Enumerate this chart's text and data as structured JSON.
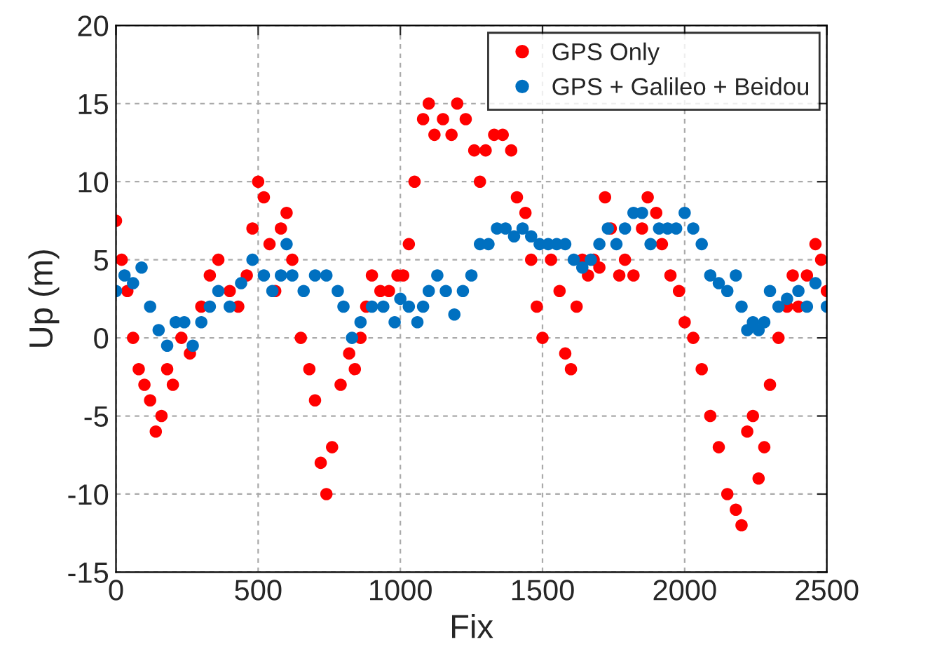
{
  "chart_data": {
    "type": "scatter",
    "xlabel": "Fix",
    "ylabel": "Up (m)",
    "xlim": [
      0,
      2500
    ],
    "xticks": [
      0,
      500,
      1000,
      1500,
      2000,
      2500
    ],
    "ylim": [
      -15,
      20
    ],
    "yticks": [
      -15,
      -10,
      -5,
      0,
      5,
      10,
      15,
      20
    ],
    "grid": true,
    "legend": "top right",
    "marker": "circle",
    "series": [
      {
        "name": "GPS Only",
        "color": "#ff0000",
        "x": [
          0,
          20,
          40,
          60,
          80,
          100,
          120,
          140,
          160,
          180,
          200,
          230,
          260,
          300,
          330,
          360,
          400,
          430,
          460,
          480,
          500,
          520,
          540,
          560,
          580,
          600,
          620,
          650,
          680,
          700,
          720,
          740,
          760,
          790,
          820,
          840,
          860,
          880,
          900,
          930,
          960,
          990,
          1010,
          1030,
          1050,
          1080,
          1100,
          1120,
          1150,
          1180,
          1200,
          1230,
          1260,
          1280,
          1300,
          1330,
          1360,
          1390,
          1410,
          1440,
          1460,
          1480,
          1500,
          1530,
          1560,
          1580,
          1600,
          1620,
          1640,
          1660,
          1680,
          1700,
          1720,
          1740,
          1770,
          1790,
          1820,
          1850,
          1870,
          1900,
          1920,
          1950,
          1980,
          2000,
          2030,
          2060,
          2090,
          2120,
          2150,
          2180,
          2200,
          2220,
          2240,
          2260,
          2280,
          2300,
          2330,
          2360,
          2380,
          2400,
          2430,
          2460,
          2480,
          2500
        ],
        "values": [
          7.5,
          5,
          3,
          0,
          -2,
          -3,
          -4,
          -6,
          -5,
          -2,
          -3,
          0,
          -1,
          2,
          4,
          5,
          3,
          2,
          4,
          7,
          10,
          9,
          6,
          3,
          7,
          8,
          5,
          0,
          -2,
          -4,
          -8,
          -10,
          -7,
          -3,
          -1,
          -2,
          0,
          2,
          4,
          3,
          3,
          4,
          4,
          6,
          10,
          14,
          15,
          13,
          14,
          13,
          15,
          14,
          12,
          10,
          12,
          13,
          13,
          12,
          9,
          8,
          5,
          2,
          0,
          5,
          3,
          -1,
          -2,
          2,
          5,
          4,
          5,
          4.5,
          9,
          7,
          4,
          5,
          4,
          7,
          9,
          8,
          6,
          4,
          3,
          1,
          0,
          -2,
          -5,
          -7,
          -10,
          -11,
          -12,
          -6,
          -5,
          -9,
          -7,
          -3,
          0,
          2,
          4,
          2,
          4,
          6,
          5,
          3
        ]
      },
      {
        "name": "GPS + Galileo + Beidou",
        "color": "#0070c0",
        "x": [
          0,
          30,
          60,
          90,
          120,
          150,
          180,
          210,
          240,
          270,
          300,
          330,
          360,
          400,
          440,
          480,
          520,
          550,
          580,
          600,
          620,
          660,
          700,
          740,
          780,
          800,
          830,
          860,
          900,
          940,
          980,
          1000,
          1030,
          1060,
          1080,
          1100,
          1130,
          1160,
          1190,
          1220,
          1250,
          1280,
          1310,
          1340,
          1370,
          1400,
          1430,
          1460,
          1490,
          1520,
          1550,
          1580,
          1610,
          1640,
          1670,
          1700,
          1730,
          1760,
          1790,
          1820,
          1850,
          1880,
          1910,
          1940,
          1970,
          2000,
          2030,
          2060,
          2090,
          2120,
          2150,
          2180,
          2200,
          2220,
          2240,
          2260,
          2280,
          2300,
          2330,
          2360,
          2400,
          2430,
          2460,
          2500
        ],
        "values": [
          3,
          4,
          3.5,
          4.5,
          2,
          0.5,
          -0.5,
          1,
          1,
          -0.5,
          1,
          2,
          3,
          2,
          3.5,
          5,
          4,
          3,
          4,
          6,
          4,
          3,
          4,
          4,
          3,
          2,
          0,
          1,
          2,
          2,
          1,
          2.5,
          2,
          1,
          2,
          3,
          4,
          3,
          1.5,
          3,
          4,
          6,
          6,
          7,
          7,
          6.5,
          7,
          6.5,
          6,
          6,
          6,
          6,
          5,
          4.5,
          5,
          6,
          7,
          6,
          7,
          8,
          8,
          6,
          7,
          7,
          7,
          8,
          7,
          6,
          4,
          3.5,
          3,
          4,
          2,
          0.5,
          1,
          0.5,
          1,
          3,
          2,
          2.5,
          3,
          2,
          3.5,
          2
        ]
      }
    ]
  }
}
